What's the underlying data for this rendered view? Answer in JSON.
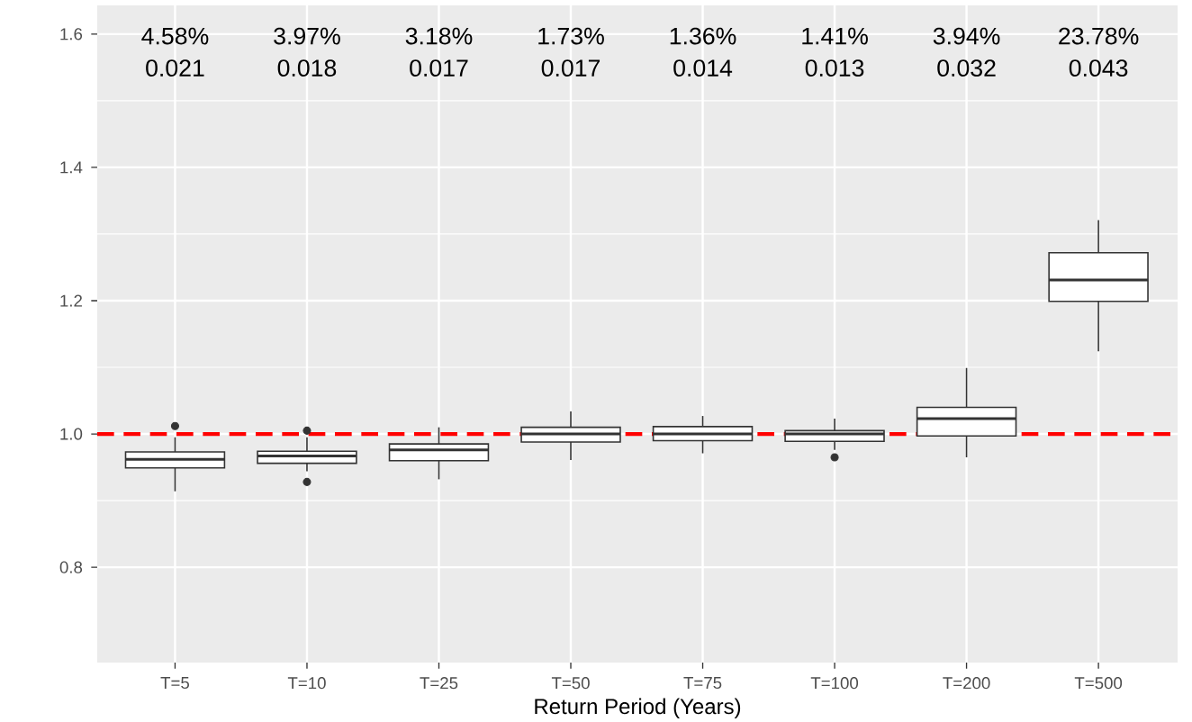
{
  "chart_data": {
    "type": "box",
    "xlabel": "Return Period (Years)",
    "categories": [
      "T=5",
      "T=10",
      "T=25",
      "T=50",
      "T=75",
      "T=100",
      "T=200",
      "T=500"
    ],
    "boxes": [
      {
        "low": 0.914,
        "q1": 0.949,
        "median": 0.962,
        "q3": 0.973,
        "high": 0.995,
        "outliers": [
          1.012
        ]
      },
      {
        "low": 0.944,
        "q1": 0.956,
        "median": 0.967,
        "q3": 0.974,
        "high": 0.995,
        "outliers": [
          1.005,
          0.928
        ]
      },
      {
        "low": 0.932,
        "q1": 0.96,
        "median": 0.976,
        "q3": 0.985,
        "high": 1.01
      },
      {
        "low": 0.961,
        "q1": 0.988,
        "median": 1.0,
        "q3": 1.01,
        "high": 1.034
      },
      {
        "low": 0.971,
        "q1": 0.99,
        "median": 1.0,
        "q3": 1.011,
        "high": 1.027
      },
      {
        "low": 0.976,
        "q1": 0.989,
        "median": 1.0,
        "q3": 1.005,
        "high": 1.023,
        "outliers": [
          0.965
        ]
      },
      {
        "low": 0.965,
        "q1": 0.997,
        "median": 1.023,
        "q3": 1.04,
        "high": 1.099
      },
      {
        "low": 1.124,
        "q1": 1.199,
        "median": 1.231,
        "q3": 1.272,
        "high": 1.321
      }
    ],
    "ylim": [
      0.657,
      1.643
    ],
    "yticks": [
      {
        "value": 0.8,
        "label": "0.8"
      },
      {
        "value": 1.0,
        "label": "1.0"
      },
      {
        "value": 1.2,
        "label": "1.2"
      },
      {
        "value": 1.4,
        "label": "1.4"
      },
      {
        "value": 1.6,
        "label": "1.6"
      }
    ],
    "grid": true,
    "ref_lines": [
      {
        "axis": "y",
        "value": 1.0,
        "color": "#ff0000",
        "line_style": "dashed"
      }
    ],
    "annotations": [
      "4.58%",
      "0.021",
      "3.97%",
      "0.018",
      "3.18%",
      "0.017",
      "1.73%",
      "0.017",
      "1.36%",
      "0.014",
      "1.41%",
      "0.013",
      "3.94%",
      "0.032",
      "23.78%",
      "0.043"
    ]
  }
}
